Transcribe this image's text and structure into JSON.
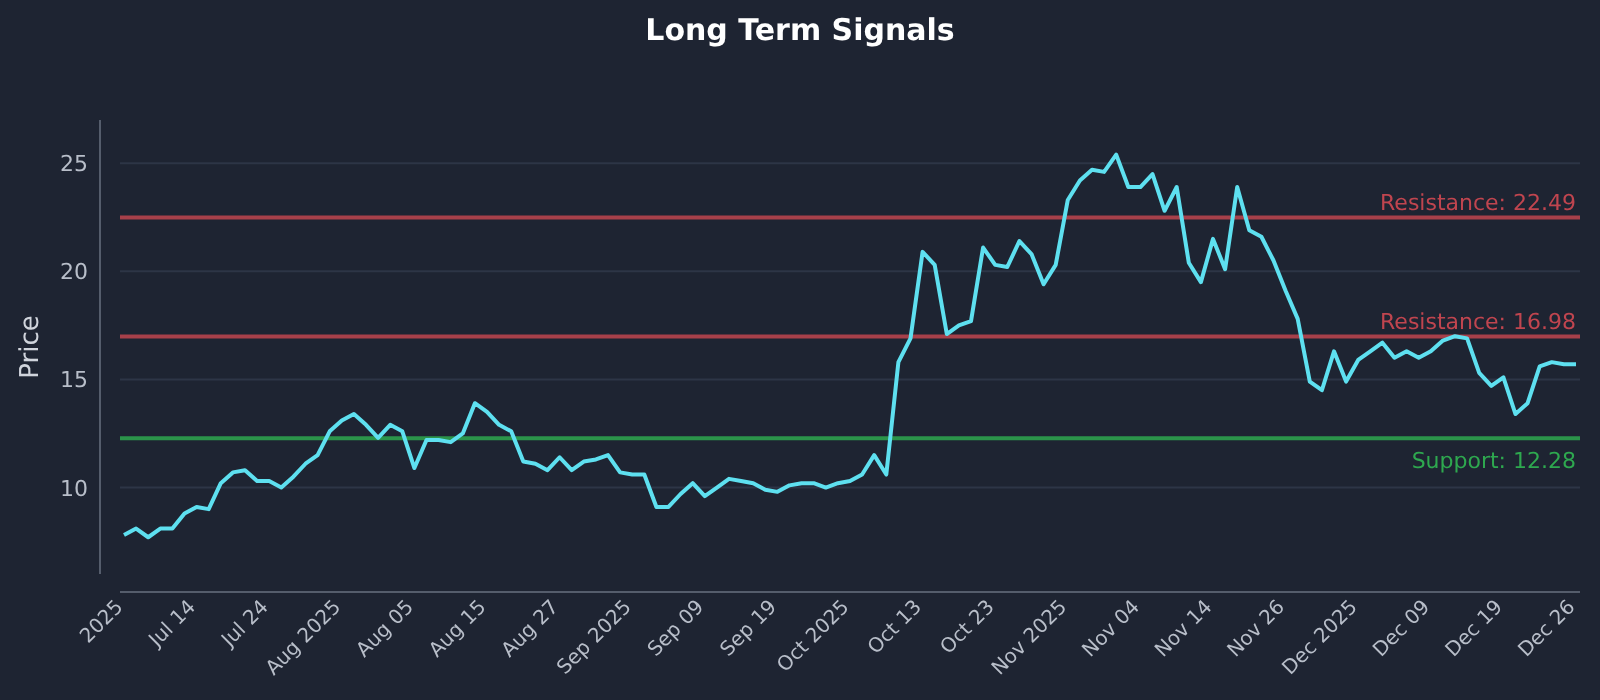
{
  "chart_data": {
    "type": "line",
    "title": "Long Term Signals",
    "ylabel": "Price",
    "categories": [
      "2025",
      null,
      null,
      null,
      null,
      null,
      "Jul 14",
      null,
      null,
      null,
      null,
      null,
      "Jul 24",
      null,
      null,
      null,
      null,
      null,
      "Aug 2025",
      null,
      null,
      null,
      null,
      null,
      "Aug 05",
      null,
      null,
      null,
      null,
      null,
      "Aug 15",
      null,
      null,
      null,
      null,
      null,
      "Aug 27",
      null,
      null,
      null,
      null,
      null,
      "Sep 2025",
      null,
      null,
      null,
      null,
      null,
      "Sep 09",
      null,
      null,
      null,
      null,
      null,
      "Sep 19",
      null,
      null,
      null,
      null,
      null,
      "Oct 2025",
      null,
      null,
      null,
      null,
      null,
      "Oct 13",
      null,
      null,
      null,
      null,
      null,
      "Oct 23",
      null,
      null,
      null,
      null,
      null,
      "Nov 2025",
      null,
      null,
      null,
      null,
      null,
      "Nov 04",
      null,
      null,
      null,
      null,
      null,
      "Nov 14",
      null,
      null,
      null,
      null,
      null,
      "Nov 26",
      null,
      null,
      null,
      null,
      null,
      "Dec 2025",
      null,
      null,
      null,
      null,
      null,
      "Dec 09",
      null,
      null,
      null,
      null,
      null,
      "Dec 19",
      null,
      null,
      null,
      null,
      null,
      "Dec 26"
    ],
    "series": [
      {
        "color": "#5ee0f0",
        "values": [
          7.8,
          8.1,
          7.7,
          8.1,
          8.1,
          8.8,
          9.1,
          9.0,
          10.2,
          10.7,
          10.8,
          10.3,
          10.3,
          10.0,
          10.5,
          11.1,
          11.5,
          12.6,
          13.1,
          13.4,
          12.9,
          12.3,
          12.9,
          12.6,
          10.9,
          12.2,
          12.2,
          12.1,
          12.5,
          13.9,
          13.5,
          12.9,
          12.6,
          11.2,
          11.1,
          10.8,
          11.4,
          10.8,
          11.2,
          11.3,
          11.5,
          10.7,
          10.6,
          10.6,
          9.1,
          9.1,
          9.7,
          10.2,
          9.6,
          10.0,
          10.4,
          10.3,
          10.2,
          9.9,
          9.8,
          10.1,
          10.2,
          10.2,
          10.0,
          10.2,
          10.3,
          10.6,
          11.5,
          10.6,
          15.8,
          16.9,
          20.9,
          20.3,
          17.1,
          17.5,
          17.7,
          21.1,
          20.3,
          20.2,
          21.4,
          20.8,
          19.4,
          20.3,
          23.3,
          24.2,
          24.7,
          24.6,
          25.4,
          23.9,
          23.9,
          24.5,
          22.8,
          23.9,
          20.4,
          19.5,
          21.5,
          20.1,
          23.9,
          21.9,
          21.6,
          20.5,
          19.1,
          17.8,
          14.9,
          14.5,
          16.3,
          14.9,
          15.9,
          16.3,
          16.7,
          16.0,
          16.3,
          16.0,
          16.3,
          16.8,
          17.0,
          16.9,
          15.3,
          14.7,
          15.1,
          13.4,
          13.9,
          15.6,
          15.8,
          15.7,
          15.7
        ]
      }
    ],
    "ylim": [
      6,
      27
    ],
    "yticks": [
      10,
      15,
      20,
      25
    ],
    "grid": "y",
    "marker": "none",
    "line_style": "solid",
    "ref_lines": [
      {
        "axis": "y",
        "value": 22.49,
        "label": "Resistance: 22.49",
        "color": "#c0454f"
      },
      {
        "axis": "y",
        "value": 16.98,
        "label": "Resistance: 16.98",
        "color": "#c0454f"
      },
      {
        "axis": "y",
        "value": 12.28,
        "label": "Support: 12.28",
        "color": "#2ea84f"
      }
    ]
  }
}
